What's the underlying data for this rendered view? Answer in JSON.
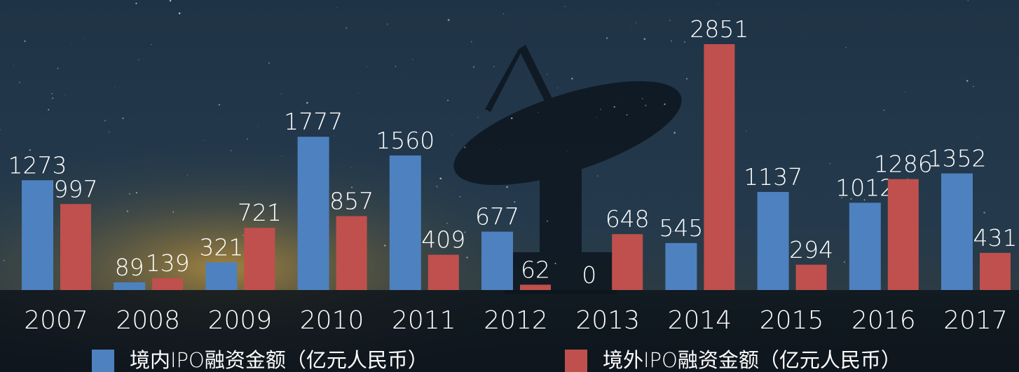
{
  "chart_data": {
    "type": "bar",
    "categories": [
      "2007",
      "2008",
      "2009",
      "2010",
      "2011",
      "2012",
      "2013",
      "2014",
      "2015",
      "2016",
      "2017"
    ],
    "series": [
      {
        "name": "境内IPO融资金额（亿元人民币）",
        "color": "#4e81bf",
        "values": [
          1273,
          89,
          321,
          1777,
          1560,
          677,
          0,
          545,
          1137,
          1012,
          1352
        ]
      },
      {
        "name": "境外IPO融资金额（亿元人民币）",
        "color": "#c0504d",
        "values": [
          997,
          139,
          721,
          857,
          409,
          62,
          648,
          2851,
          294,
          1286,
          431
        ]
      }
    ]
  }
}
